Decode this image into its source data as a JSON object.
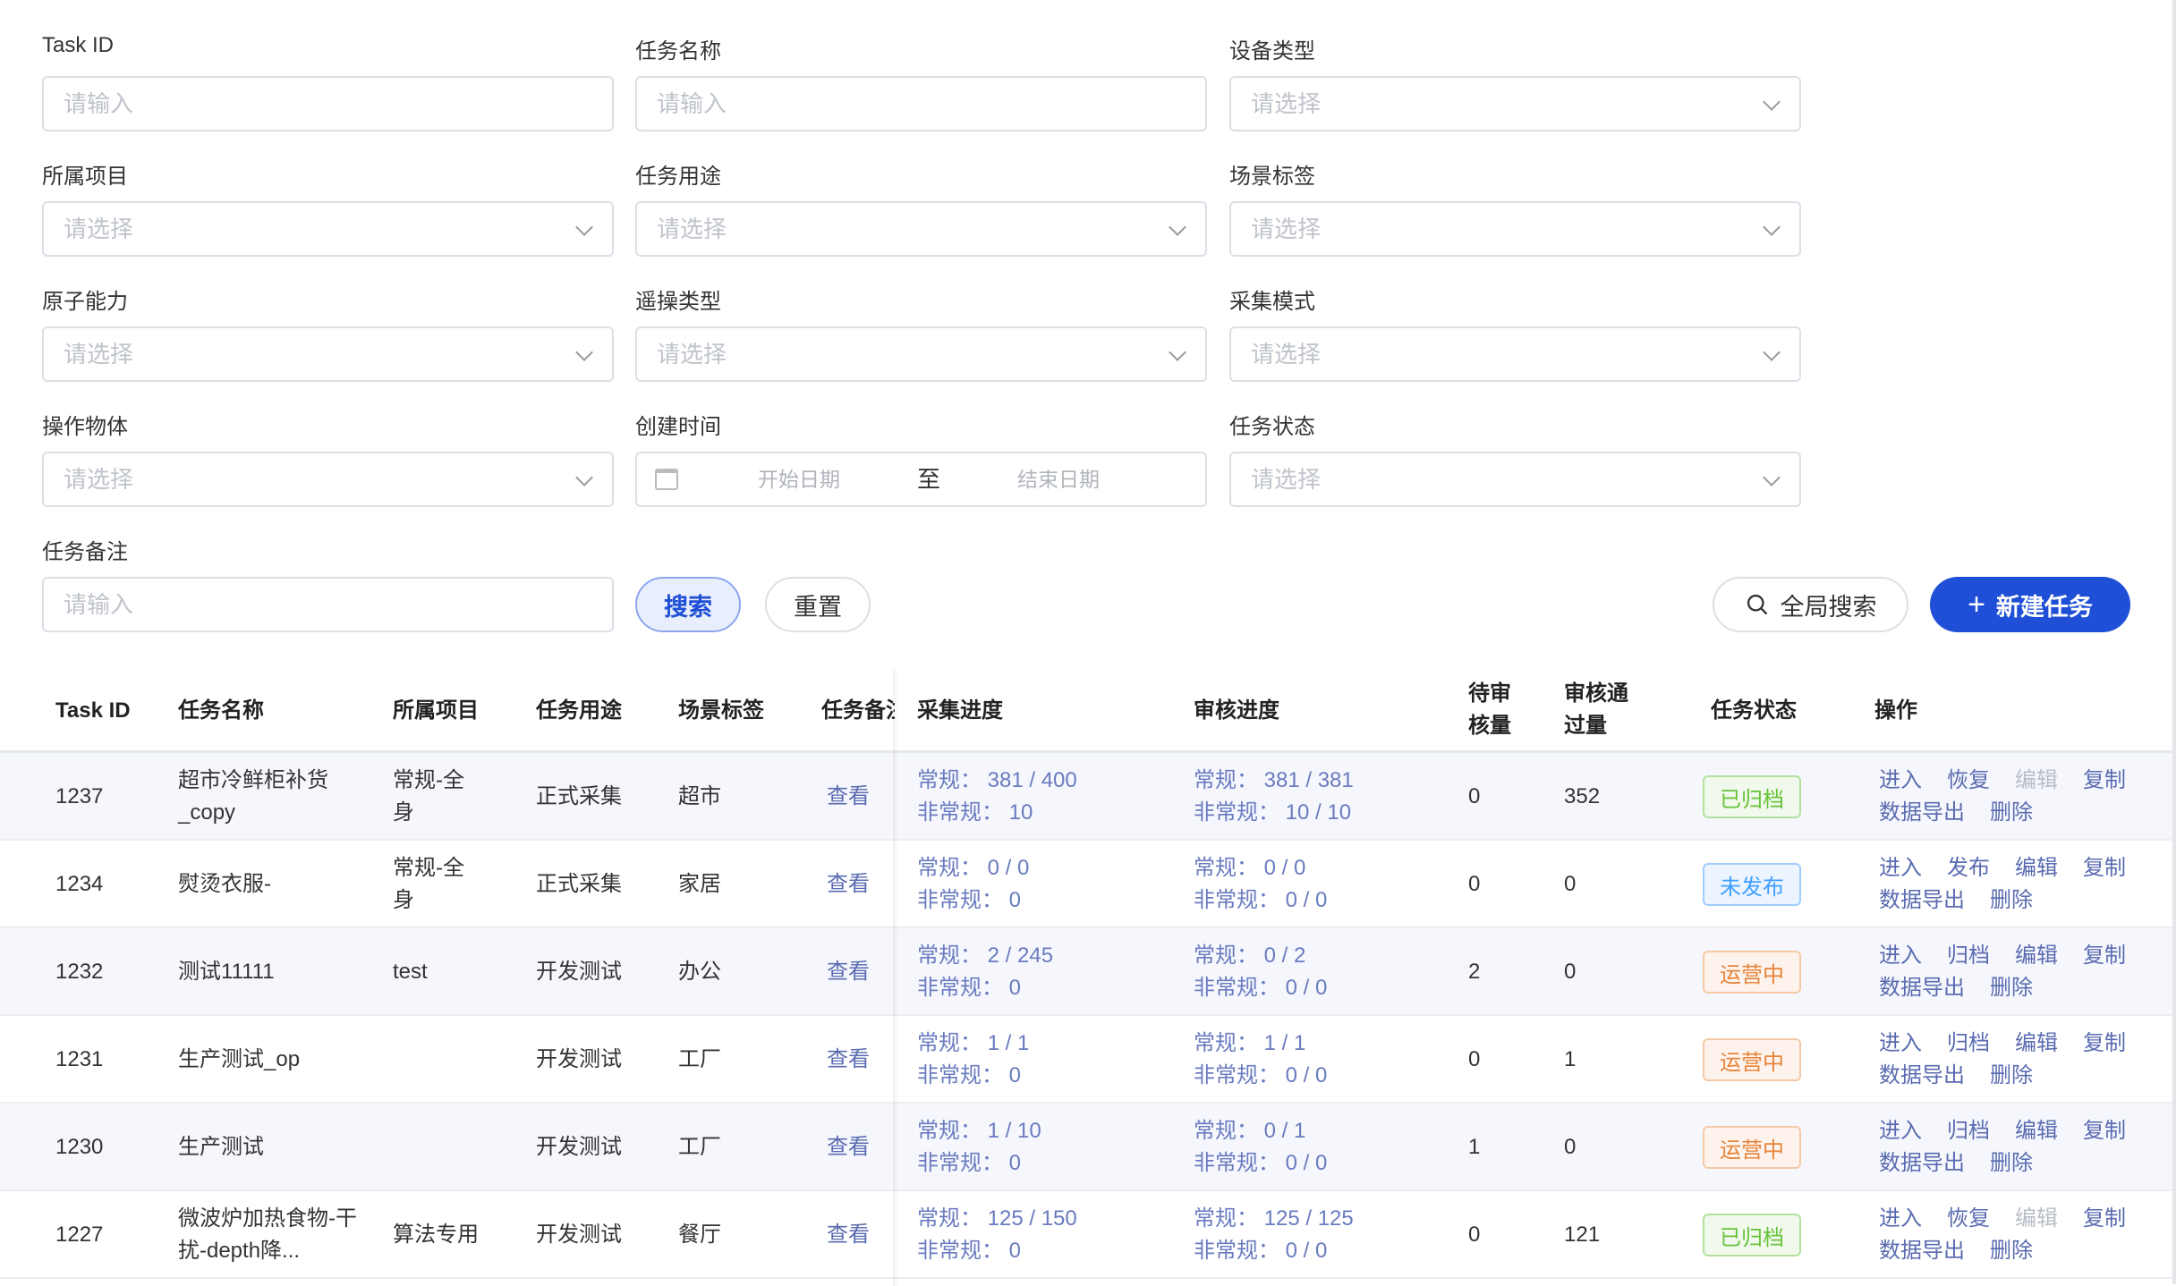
{
  "filters": [
    {
      "label": "Task ID",
      "placeholder": "请输入",
      "type": "input"
    },
    {
      "label": "任务名称",
      "placeholder": "请输入",
      "type": "input"
    },
    {
      "label": "设备类型",
      "placeholder": "请选择",
      "type": "select"
    },
    {
      "label": "所属项目",
      "placeholder": "请选择",
      "type": "select"
    },
    {
      "label": "任务用途",
      "placeholder": "请选择",
      "type": "select"
    },
    {
      "label": "场景标签",
      "placeholder": "请选择",
      "type": "select"
    },
    {
      "label": "原子能力",
      "placeholder": "请选择",
      "type": "select"
    },
    {
      "label": "遥操类型",
      "placeholder": "请选择",
      "type": "select"
    },
    {
      "label": "采集模式",
      "placeholder": "请选择",
      "type": "select"
    },
    {
      "label": "操作物体",
      "placeholder": "请选择",
      "type": "select"
    },
    {
      "label": "创建时间",
      "type": "date",
      "start": "开始日期",
      "sep": "至",
      "end": "结束日期"
    },
    {
      "label": "任务状态",
      "placeholder": "请选择",
      "type": "select"
    },
    {
      "label": "任务备注",
      "placeholder": "请输入",
      "type": "input"
    }
  ],
  "actions": {
    "search": "搜索",
    "reset": "重置",
    "global_search": "全局搜索",
    "new_task": "新建任务"
  },
  "colors": {
    "primary": "#1f4fd6",
    "link": "#5a6bb0",
    "archived": "#67c23a",
    "unpublished": "#409eff",
    "running": "#e6843a"
  },
  "table": {
    "headers": [
      "Task ID",
      "任务名称",
      "所属项目",
      "任务用途",
      "场景标签",
      "任务备注",
      "采集进度",
      "审核进度",
      "待审核量",
      "审核通过量",
      "任务状态",
      "操作"
    ],
    "rows": [
      {
        "id": "1237",
        "name": "超市冷鲜柜补货_copy",
        "project": "常规-全身",
        "purpose": "正式采集",
        "scene": "超市",
        "note": "查看",
        "collect": [
          "常规： 381 / 400",
          "非常规： 10"
        ],
        "review": [
          "常规： 381 / 381",
          "非常规： 10 / 10"
        ],
        "pending": "0",
        "passed": "352",
        "status": "已归档",
        "status_type": "archived",
        "ops": [
          "进入",
          "恢复",
          "编辑",
          "复制",
          "数据导出",
          "删除"
        ],
        "disabled": [
          "编辑"
        ]
      },
      {
        "id": "1234",
        "name": "熨烫衣服-",
        "project": "常规-全身",
        "purpose": "正式采集",
        "scene": "家居",
        "note": "查看",
        "collect": [
          "常规： 0 / 0",
          "非常规： 0"
        ],
        "review": [
          "常规： 0 / 0",
          "非常规： 0 / 0"
        ],
        "pending": "0",
        "passed": "0",
        "status": "未发布",
        "status_type": "unpublished",
        "ops": [
          "进入",
          "发布",
          "编辑",
          "复制",
          "数据导出",
          "删除"
        ],
        "disabled": []
      },
      {
        "id": "1232",
        "name": "测试11111",
        "project": "test",
        "purpose": "开发测试",
        "scene": "办公",
        "note": "查看",
        "collect": [
          "常规： 2 / 245",
          "非常规： 0"
        ],
        "review": [
          "常规： 0 / 2",
          "非常规： 0 / 0"
        ],
        "pending": "2",
        "passed": "0",
        "status": "运营中",
        "status_type": "running",
        "ops": [
          "进入",
          "归档",
          "编辑",
          "复制",
          "数据导出",
          "删除"
        ],
        "disabled": []
      },
      {
        "id": "1231",
        "name": "生产测试_op",
        "project": "",
        "purpose": "开发测试",
        "scene": "工厂",
        "note": "查看",
        "collect": [
          "常规： 1 / 1",
          "非常规： 0"
        ],
        "review": [
          "常规： 1 / 1",
          "非常规： 0 / 0"
        ],
        "pending": "0",
        "passed": "1",
        "status": "运营中",
        "status_type": "running",
        "ops": [
          "进入",
          "归档",
          "编辑",
          "复制",
          "数据导出",
          "删除"
        ],
        "disabled": []
      },
      {
        "id": "1230",
        "name": "生产测试",
        "project": "",
        "purpose": "开发测试",
        "scene": "工厂",
        "note": "查看",
        "collect": [
          "常规： 1 / 10",
          "非常规： 0"
        ],
        "review": [
          "常规： 0 / 1",
          "非常规： 0 / 0"
        ],
        "pending": "1",
        "passed": "0",
        "status": "运营中",
        "status_type": "running",
        "ops": [
          "进入",
          "归档",
          "编辑",
          "复制",
          "数据导出",
          "删除"
        ],
        "disabled": []
      },
      {
        "id": "1227",
        "name": "微波炉加热食物-干扰-depth降...",
        "project": "算法专用",
        "purpose": "开发测试",
        "scene": "餐厅",
        "note": "查看",
        "collect": [
          "常规： 125 / 150",
          "非常规： 0"
        ],
        "review": [
          "常规： 125 / 125",
          "非常规： 0 / 0"
        ],
        "pending": "0",
        "passed": "121",
        "status": "已归档",
        "status_type": "archived",
        "ops": [
          "进入",
          "恢复",
          "编辑",
          "复制",
          "数据导出",
          "删除"
        ],
        "disabled": [
          "编辑"
        ]
      }
    ]
  }
}
